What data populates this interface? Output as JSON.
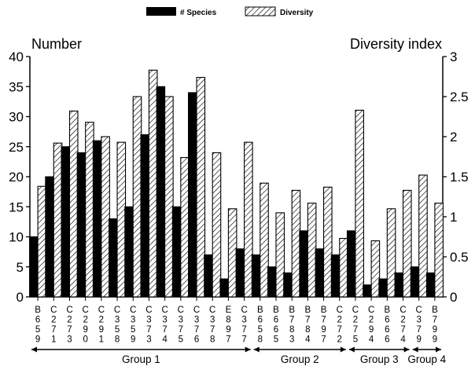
{
  "chart_data": {
    "type": "bar",
    "legend": {
      "placement": "top-center",
      "items": [
        "# Species",
        "Diversity"
      ]
    },
    "left_axis": {
      "title": "Number",
      "ylim": [
        0,
        40
      ],
      "ticks": [
        "0",
        "5",
        "10",
        "15",
        "20",
        "25",
        "30",
        "35",
        "40"
      ]
    },
    "right_axis": {
      "title": "Diversity index",
      "ylim": [
        0,
        3
      ],
      "ticks": [
        "0",
        "0.5",
        "1",
        "1.5",
        "2",
        "2.5",
        "3"
      ]
    },
    "categories": [
      "B659",
      "C271",
      "C273",
      "C290",
      "C291",
      "C358",
      "C359",
      "C373",
      "C374",
      "C375",
      "C376",
      "C378",
      "E897",
      "C377",
      "B658",
      "B665",
      "B783",
      "B784",
      "B797",
      "C272",
      "C275",
      "C294",
      "B666",
      "C274",
      "C379",
      "B799"
    ],
    "series": [
      {
        "name": "# Species",
        "axis": "left",
        "pattern": "solid",
        "values": [
          10,
          20,
          25,
          24,
          26,
          13,
          15,
          27,
          35,
          15,
          34,
          7,
          3,
          8,
          7,
          5,
          4,
          11,
          8,
          7,
          11,
          2,
          3,
          4,
          5,
          4
        ]
      },
      {
        "name": "Diversity",
        "axis": "right",
        "pattern": "hatched",
        "values": [
          1.38,
          1.92,
          2.32,
          2.18,
          2.0,
          1.93,
          2.5,
          2.83,
          2.5,
          1.74,
          2.74,
          1.8,
          1.1,
          1.93,
          1.42,
          1.05,
          1.33,
          1.17,
          1.37,
          0.73,
          2.33,
          0.7,
          1.1,
          1.33,
          1.52,
          1.17
        ]
      }
    ],
    "groups": [
      {
        "label": "Group 1",
        "start": 0,
        "end": 13
      },
      {
        "label": "Group 2",
        "start": 14,
        "end": 19
      },
      {
        "label": "Group 3",
        "start": 20,
        "end": 23
      },
      {
        "label": "Group 4",
        "start": 24,
        "end": 25
      }
    ],
    "grid": false
  }
}
